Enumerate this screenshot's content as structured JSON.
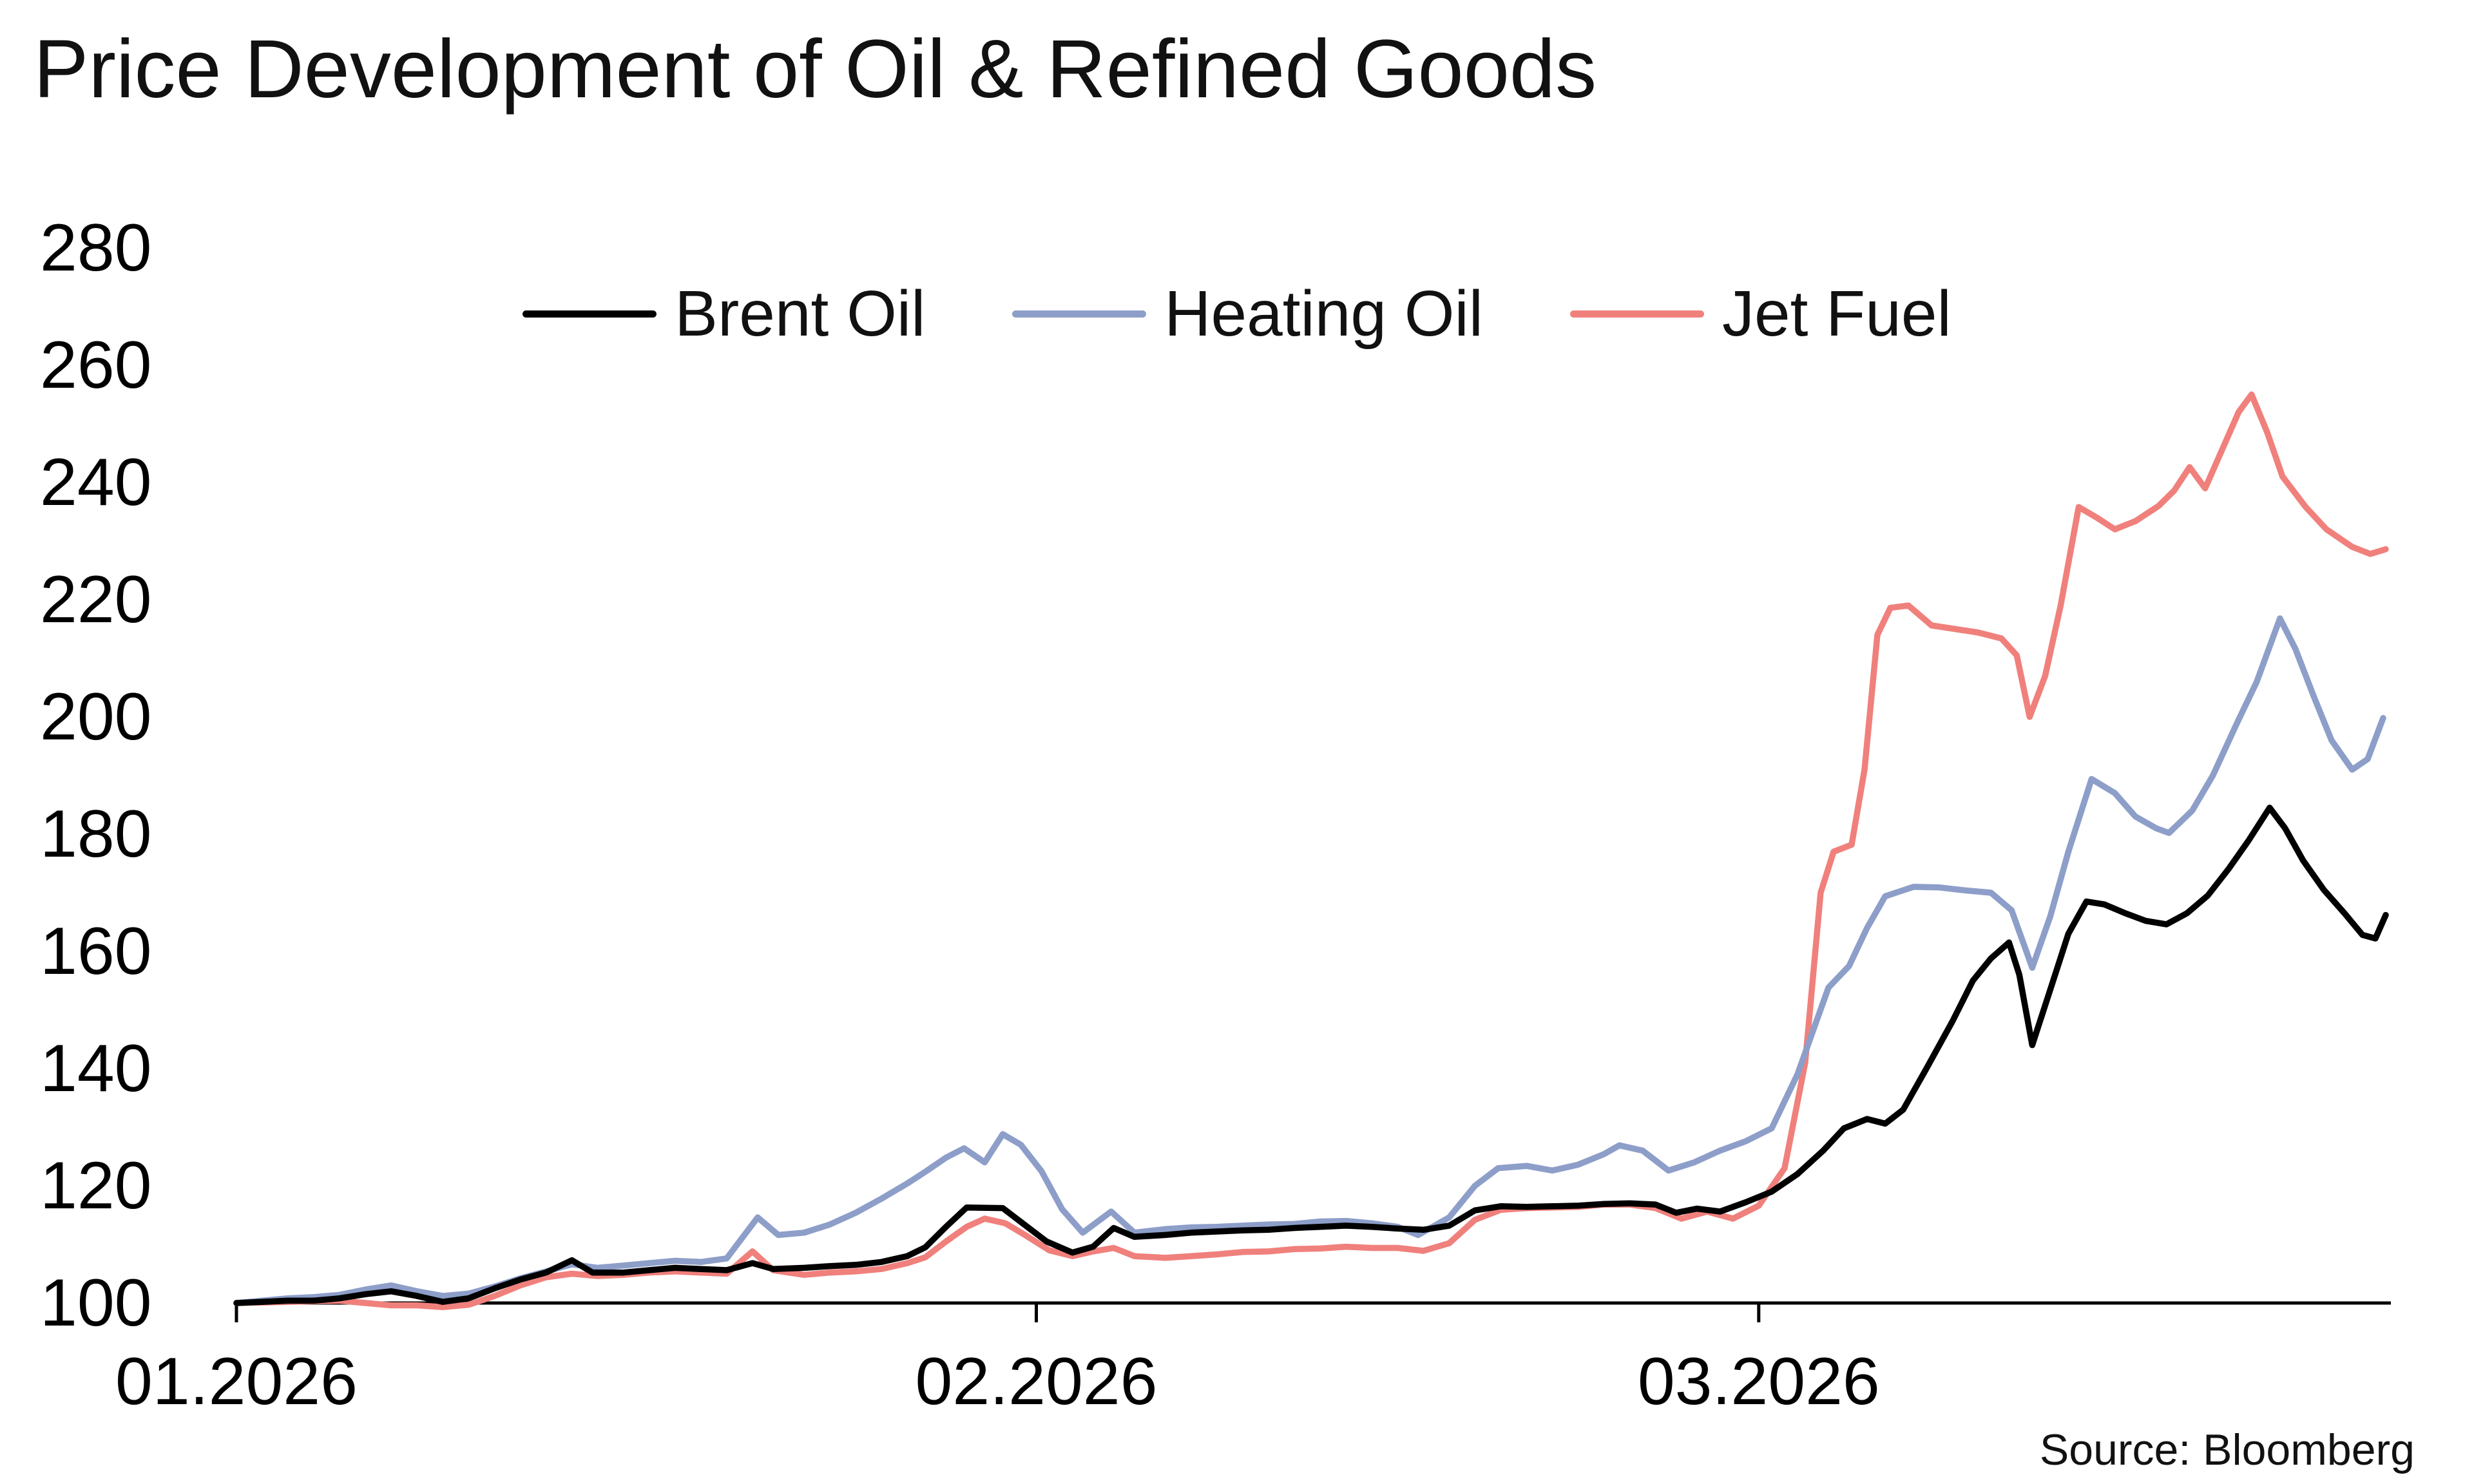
{
  "title": "Price Development of Oil & Refined Goods",
  "source": "Source: Bloomberg",
  "chart_data": {
    "type": "line",
    "title": "Price Development of Oil & Refined Goods",
    "xlabel": "",
    "ylabel": "",
    "x_unit": "days from 01.2026",
    "x_range": [
      0,
      83.5
    ],
    "ylim": [
      100,
      280
    ],
    "y_ticks": [
      100,
      120,
      140,
      160,
      180,
      200,
      220,
      240,
      260,
      280
    ],
    "x_ticks": [
      {
        "pos": 0,
        "label": "01.2026"
      },
      {
        "pos": 31,
        "label": "02.2026"
      },
      {
        "pos": 59,
        "label": "03.2026"
      }
    ],
    "grid": false,
    "legend_position": "top-center",
    "axis_color": "#000000",
    "series": [
      {
        "name": "Brent Oil",
        "color": "#000000",
        "points": [
          [
            0,
            100
          ],
          [
            1,
            100.2
          ],
          [
            2,
            100.4
          ],
          [
            3,
            100.4
          ],
          [
            4,
            100.8
          ],
          [
            5,
            101.5
          ],
          [
            6,
            102
          ],
          [
            7,
            101.2
          ],
          [
            8,
            100.2
          ],
          [
            9,
            100.8
          ],
          [
            10,
            102.5
          ],
          [
            11,
            104
          ],
          [
            12,
            105.2
          ],
          [
            13,
            107.3
          ],
          [
            13.8,
            105.2
          ],
          [
            15,
            105.2
          ],
          [
            16,
            105.6
          ],
          [
            17,
            106
          ],
          [
            18,
            105.8
          ],
          [
            19,
            105.6
          ],
          [
            20,
            106.8
          ],
          [
            20.8,
            105.8
          ],
          [
            22,
            106
          ],
          [
            23,
            106.3
          ],
          [
            24,
            106.5
          ],
          [
            25,
            107
          ],
          [
            26,
            108
          ],
          [
            26.7,
            109.5
          ],
          [
            27.5,
            113
          ],
          [
            28.3,
            116.3
          ],
          [
            29.7,
            116.2
          ],
          [
            30.5,
            113.5
          ],
          [
            31.4,
            110.5
          ],
          [
            32.4,
            108.6
          ],
          [
            33.2,
            109.6
          ],
          [
            34,
            112.8
          ],
          [
            34.8,
            111.3
          ],
          [
            36,
            111.6
          ],
          [
            37,
            112
          ],
          [
            38,
            112.2
          ],
          [
            39,
            112.4
          ],
          [
            40,
            112.5
          ],
          [
            41,
            112.8
          ],
          [
            42,
            113
          ],
          [
            43,
            113.2
          ],
          [
            44,
            113
          ],
          [
            45,
            112.7
          ],
          [
            46,
            112.5
          ],
          [
            47,
            113.2
          ],
          [
            48,
            115.8
          ],
          [
            49,
            116.5
          ],
          [
            50,
            116.4
          ],
          [
            51,
            116.5
          ],
          [
            52,
            116.6
          ],
          [
            53,
            116.9
          ],
          [
            54,
            117
          ],
          [
            55,
            116.8
          ],
          [
            55.8,
            115.4
          ],
          [
            56.6,
            116.1
          ],
          [
            57.5,
            115.6
          ],
          [
            58.5,
            117.2
          ],
          [
            59.5,
            119
          ],
          [
            60.5,
            122
          ],
          [
            61.5,
            126
          ],
          [
            62.3,
            129.8
          ],
          [
            63.2,
            131.4
          ],
          [
            63.9,
            130.6
          ],
          [
            64.6,
            133
          ],
          [
            65.5,
            140
          ],
          [
            66.5,
            148
          ],
          [
            67.3,
            155
          ],
          [
            68,
            158.8
          ],
          [
            68.7,
            161.5
          ],
          [
            69.1,
            156
          ],
          [
            69.6,
            144
          ],
          [
            70.3,
            153.5
          ],
          [
            71,
            163
          ],
          [
            71.7,
            168.5
          ],
          [
            72.4,
            168
          ],
          [
            73.2,
            166.5
          ],
          [
            74,
            165.2
          ],
          [
            74.8,
            164.6
          ],
          [
            75.6,
            166.5
          ],
          [
            76.4,
            169.5
          ],
          [
            77.2,
            174
          ],
          [
            78,
            179
          ],
          [
            78.8,
            184.5
          ],
          [
            79.4,
            181
          ],
          [
            80.1,
            175.5
          ],
          [
            80.9,
            170.5
          ],
          [
            81.7,
            166.5
          ],
          [
            82.4,
            162.8
          ],
          [
            82.9,
            162.2
          ],
          [
            83.3,
            166.2
          ]
        ]
      },
      {
        "name": "Heating Oil",
        "color": "#8d9ec9",
        "points": [
          [
            0,
            100
          ],
          [
            1,
            100.4
          ],
          [
            2,
            100.8
          ],
          [
            3,
            101
          ],
          [
            4,
            101.4
          ],
          [
            5,
            102.3
          ],
          [
            6,
            103
          ],
          [
            7,
            102
          ],
          [
            8,
            101.2
          ],
          [
            9,
            101.6
          ],
          [
            10,
            102.8
          ],
          [
            11,
            104.2
          ],
          [
            12,
            105.4
          ],
          [
            13,
            106.6
          ],
          [
            14,
            106
          ],
          [
            15,
            106.4
          ],
          [
            16,
            106.8
          ],
          [
            17,
            107.2
          ],
          [
            18,
            107
          ],
          [
            19,
            107.6
          ],
          [
            20.2,
            114.6
          ],
          [
            21,
            111.6
          ],
          [
            22,
            112
          ],
          [
            23,
            113.4
          ],
          [
            24,
            115.4
          ],
          [
            25,
            117.8
          ],
          [
            26,
            120.4
          ],
          [
            26.7,
            122.4
          ],
          [
            27.5,
            124.8
          ],
          [
            28.2,
            126.4
          ],
          [
            29,
            124
          ],
          [
            29.7,
            128.8
          ],
          [
            30.4,
            127
          ],
          [
            31.2,
            122.5
          ],
          [
            32,
            116
          ],
          [
            32.8,
            112
          ],
          [
            33.9,
            115.6
          ],
          [
            34.8,
            112
          ],
          [
            36,
            112.6
          ],
          [
            37,
            112.9
          ],
          [
            38,
            113
          ],
          [
            39,
            113.2
          ],
          [
            40,
            113.4
          ],
          [
            41,
            113.5
          ],
          [
            42,
            113.9
          ],
          [
            43,
            114
          ],
          [
            44,
            113.6
          ],
          [
            45,
            113
          ],
          [
            45.8,
            111.6
          ],
          [
            47,
            114.6
          ],
          [
            48,
            120
          ],
          [
            48.9,
            123
          ],
          [
            50,
            123.4
          ],
          [
            51,
            122.6
          ],
          [
            52,
            123.6
          ],
          [
            53,
            125.4
          ],
          [
            53.6,
            126.9
          ],
          [
            54.5,
            126
          ],
          [
            55.5,
            122.6
          ],
          [
            56.5,
            124
          ],
          [
            57.5,
            126
          ],
          [
            58.5,
            127.6
          ],
          [
            59.5,
            129.8
          ],
          [
            60.5,
            139
          ],
          [
            61.7,
            153.8
          ],
          [
            62.5,
            157.5
          ],
          [
            63.2,
            164
          ],
          [
            63.9,
            169.4
          ],
          [
            65,
            171
          ],
          [
            66,
            170.9
          ],
          [
            67,
            170.4
          ],
          [
            68,
            170
          ],
          [
            68.8,
            167
          ],
          [
            69.6,
            157.2
          ],
          [
            70.3,
            166
          ],
          [
            71,
            177
          ],
          [
            71.9,
            189.4
          ],
          [
            72.8,
            187
          ],
          [
            73.6,
            183
          ],
          [
            74.4,
            181
          ],
          [
            74.9,
            180.2
          ],
          [
            75.8,
            184
          ],
          [
            76.6,
            190
          ],
          [
            77.5,
            198.6
          ],
          [
            78.3,
            206
          ],
          [
            79.2,
            216.8
          ],
          [
            79.8,
            211.6
          ],
          [
            80.5,
            203.6
          ],
          [
            81.2,
            196
          ],
          [
            82,
            191
          ],
          [
            82.6,
            192.8
          ],
          [
            83.2,
            199.8
          ]
        ]
      },
      {
        "name": "Jet Fuel",
        "color": "#f0807c",
        "points": [
          [
            0,
            100
          ],
          [
            1,
            100.1
          ],
          [
            2,
            100.2
          ],
          [
            3,
            100.3
          ],
          [
            4,
            100.4
          ],
          [
            5,
            100
          ],
          [
            6,
            99.6
          ],
          [
            7,
            99.6
          ],
          [
            8,
            99.3
          ],
          [
            9,
            99.7
          ],
          [
            10,
            101.2
          ],
          [
            11,
            103
          ],
          [
            12,
            104.4
          ],
          [
            13,
            105
          ],
          [
            14,
            104.6
          ],
          [
            15,
            104.8
          ],
          [
            16,
            105.2
          ],
          [
            17,
            105.4
          ],
          [
            18,
            105.2
          ],
          [
            19,
            105
          ],
          [
            20,
            108.8
          ],
          [
            20.8,
            105.6
          ],
          [
            22,
            104.8
          ],
          [
            23,
            105.2
          ],
          [
            24,
            105.4
          ],
          [
            25,
            105.8
          ],
          [
            26,
            106.8
          ],
          [
            26.7,
            107.8
          ],
          [
            27.5,
            110.5
          ],
          [
            28.3,
            113
          ],
          [
            29,
            114.4
          ],
          [
            29.8,
            113.6
          ],
          [
            30.6,
            111.5
          ],
          [
            31.5,
            109
          ],
          [
            32.4,
            108
          ],
          [
            33.2,
            108.8
          ],
          [
            34,
            109.4
          ],
          [
            34.8,
            108
          ],
          [
            36,
            107.7
          ],
          [
            37,
            108
          ],
          [
            38,
            108.3
          ],
          [
            39,
            108.7
          ],
          [
            40,
            108.8
          ],
          [
            41,
            109.2
          ],
          [
            42,
            109.3
          ],
          [
            43,
            109.6
          ],
          [
            44,
            109.4
          ],
          [
            45,
            109.4
          ],
          [
            46,
            108.9
          ],
          [
            47,
            110.2
          ],
          [
            48,
            114.2
          ],
          [
            49,
            115.9
          ],
          [
            50,
            116.2
          ],
          [
            51,
            116.3
          ],
          [
            52,
            116.4
          ],
          [
            53,
            116.8
          ],
          [
            54,
            116.8
          ],
          [
            55,
            116.2
          ],
          [
            56,
            114.4
          ],
          [
            57,
            115.6
          ],
          [
            58,
            114.4
          ],
          [
            59,
            116.6
          ],
          [
            60,
            123
          ],
          [
            60.8,
            141
          ],
          [
            61.4,
            170
          ],
          [
            61.9,
            177
          ],
          [
            62.6,
            178.2
          ],
          [
            63.1,
            191
          ],
          [
            63.6,
            214
          ],
          [
            64.1,
            218.6
          ],
          [
            64.8,
            219
          ],
          [
            65.7,
            215.6
          ],
          [
            66.6,
            215
          ],
          [
            67.5,
            214.4
          ],
          [
            68.4,
            213.4
          ],
          [
            69,
            210.5
          ],
          [
            69.5,
            200
          ],
          [
            70.1,
            207
          ],
          [
            70.7,
            219
          ],
          [
            71.4,
            235.8
          ],
          [
            72.1,
            234
          ],
          [
            72.8,
            232
          ],
          [
            73.6,
            233.4
          ],
          [
            74.5,
            236
          ],
          [
            75.1,
            238.6
          ],
          [
            75.7,
            242.6
          ],
          [
            76.3,
            239
          ],
          [
            77,
            246
          ],
          [
            77.6,
            252
          ],
          [
            78.1,
            255
          ],
          [
            78.7,
            248.6
          ],
          [
            79.3,
            241
          ],
          [
            80.2,
            235.8
          ],
          [
            81,
            232
          ],
          [
            82,
            229
          ],
          [
            82.7,
            227.8
          ],
          [
            83.3,
            228.6
          ]
        ]
      }
    ]
  }
}
